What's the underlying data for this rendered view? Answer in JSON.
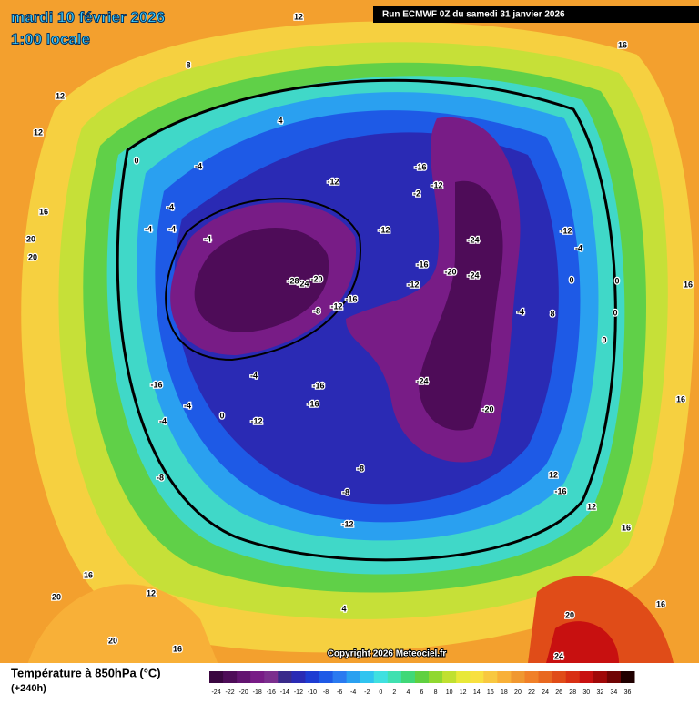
{
  "header": {
    "date": "mardi 10 février 2026",
    "time": "1:00 locale",
    "run": "Run ECMWF 0Z du samedi 31 janvier 2026"
  },
  "footer": {
    "title": "Température à 850hPa (°C)",
    "lead": "(+240h)",
    "copyright": "Copyright 2026 Meteociel.fr"
  },
  "colorbar": {
    "ticks": [
      -24,
      -22,
      -20,
      -18,
      -16,
      -14,
      -12,
      -10,
      -8,
      -6,
      -4,
      -2,
      0,
      2,
      4,
      6,
      8,
      10,
      12,
      14,
      16,
      18,
      20,
      22,
      24,
      26,
      28,
      30,
      32,
      34,
      36
    ],
    "colors": [
      "#3a0640",
      "#4e0c58",
      "#631470",
      "#781c86",
      "#7c2f8e",
      "#3a2a8a",
      "#2a2ab4",
      "#1e3cd2",
      "#1e5ae6",
      "#2a7af0",
      "#2aa0f0",
      "#30c4f0",
      "#40e0e0",
      "#40e0b0",
      "#40d878",
      "#60d040",
      "#90d830",
      "#c0e030",
      "#e8e838",
      "#f8e040",
      "#f8c840",
      "#f8b038",
      "#f09830",
      "#f08028",
      "#e86820",
      "#e04c18",
      "#d83014",
      "#c81010",
      "#a00808",
      "#700404",
      "#200000"
    ]
  },
  "map_labels": [
    12,
    8,
    12,
    12,
    16,
    20,
    20,
    4,
    0,
    -4,
    -4,
    -4,
    -4,
    -4,
    -12,
    -16,
    -2,
    -12,
    -12,
    -24,
    -16,
    -20,
    -24,
    -12,
    -20,
    -24,
    -28,
    -12,
    -16,
    -8,
    -12,
    -4,
    0,
    0,
    -4,
    8,
    0,
    0,
    16,
    -16,
    -4,
    -16,
    -16,
    -24,
    -20,
    -4,
    -4,
    0,
    -12,
    16,
    -8,
    -8,
    -8,
    -12,
    12,
    -16,
    12,
    16,
    16,
    12,
    20,
    20,
    16,
    4,
    16,
    20,
    24,
    16
  ]
}
